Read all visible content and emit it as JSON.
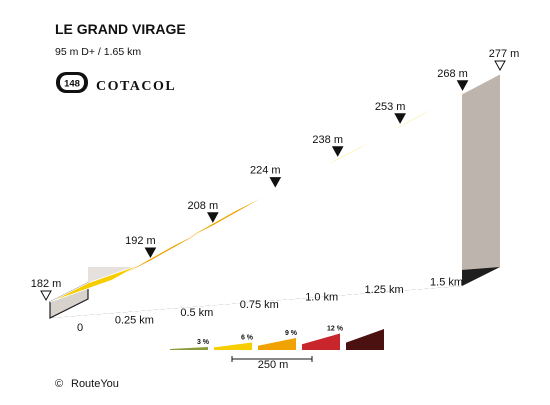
{
  "header": {
    "title": "LE GRAND VIRAGE",
    "subtitle": "95 m D+ / 1.65 km",
    "badge_number": "148",
    "brand": "COTACOL"
  },
  "chart_data": {
    "type": "area",
    "title": "LE GRAND VIRAGE",
    "xlabel": "",
    "ylabel": "",
    "x_unit": "km",
    "y_unit": "m",
    "points": [
      {
        "x": 0,
        "y": 182
      },
      {
        "x": 0.25,
        "y": 192
      },
      {
        "x": 0.5,
        "y": 208
      },
      {
        "x": 0.75,
        "y": 224
      },
      {
        "x": 1.0,
        "y": 238
      },
      {
        "x": 1.25,
        "y": 253
      },
      {
        "x": 1.5,
        "y": 268
      },
      {
        "x": 1.65,
        "y": 277
      }
    ],
    "segments": [
      {
        "from": 0,
        "to": 0.25,
        "color": "#f7cd00"
      },
      {
        "from": 0.25,
        "to": 0.5,
        "color": "#f0a200"
      },
      {
        "from": 0.5,
        "to": 0.75,
        "color": "#f0a200"
      },
      {
        "from": 0.75,
        "to": 1.0,
        "color": "#f7cd00"
      },
      {
        "from": 1.0,
        "to": 1.25,
        "color": "#f7cd00"
      },
      {
        "from": 1.25,
        "to": 1.5,
        "color": "#f7cd00"
      },
      {
        "from": 1.5,
        "to": 1.65,
        "color": "#f7cd00"
      }
    ],
    "elevation_labels": [
      "182 m",
      "192 m",
      "208 m",
      "224 m",
      "238 m",
      "253 m",
      "268 m",
      "277 m"
    ],
    "distance_ticks": [
      "0",
      "0.25 km",
      "0.5 km",
      "0.75 km",
      "1.0 km",
      "1.25 km",
      "1.5 km"
    ],
    "distance_tick_values": [
      0,
      0.25,
      0.5,
      0.75,
      1.0,
      1.25,
      1.5
    ],
    "xlim": [
      0,
      1.65
    ],
    "ylim": [
      182,
      277
    ],
    "legend": {
      "gradients": [
        {
          "label": "3 %",
          "color": "#8d9b3a"
        },
        {
          "label": "6 %",
          "color": "#f7cd00"
        },
        {
          "label": "9 %",
          "color": "#f0a200"
        },
        {
          "label": "12 %",
          "color": "#c8252c"
        },
        {
          "label": "",
          "color": "#4b1010"
        }
      ],
      "scale_label": "250 m"
    }
  },
  "footer": {
    "copyright_symbol": "©",
    "copyright_text": "RouteYou"
  }
}
